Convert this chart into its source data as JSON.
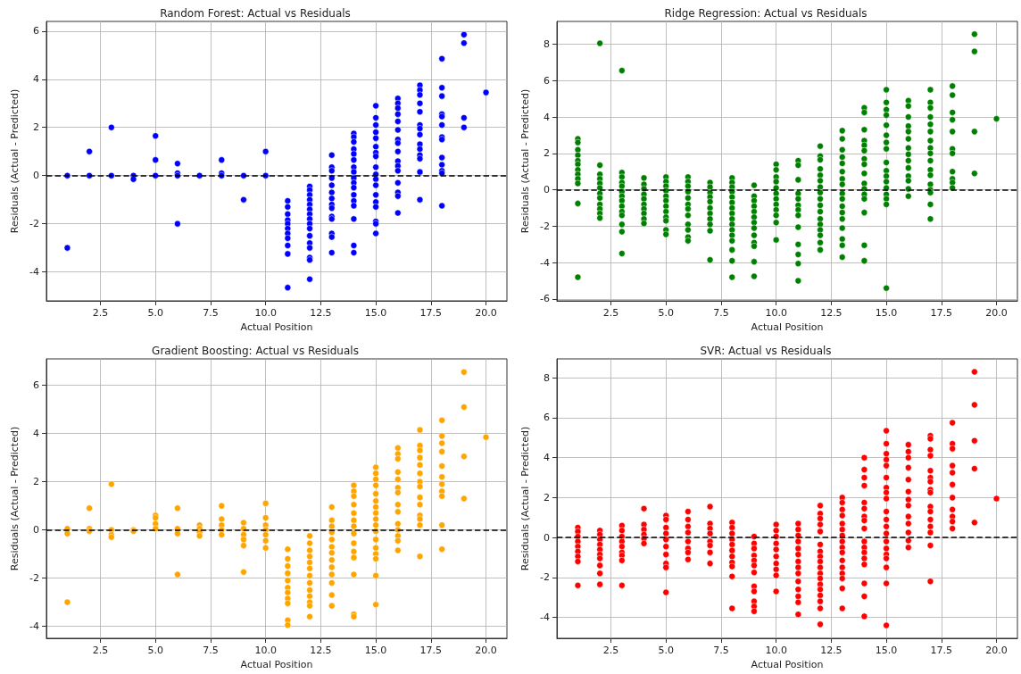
{
  "chart_data": [
    {
      "type": "scatter",
      "title": "Random Forest: Actual vs Residuals",
      "xlabel": "Actual Position",
      "ylabel": "Residuals (Actual - Predicted)",
      "grid": true,
      "marker": "circle",
      "xlim": [
        0.05,
        20.95
      ],
      "ylim": [
        -5.2,
        6.4
      ],
      "xticks": [
        2.5,
        {
          "value": 5,
          "label": "5.0"
        },
        7.5,
        {
          "value": 10,
          "label": "10.0"
        },
        12.5,
        {
          "value": 15,
          "label": "15.0"
        },
        17.5,
        {
          "value": 20,
          "label": "20.0"
        }
      ],
      "yticks": [
        -4,
        -2,
        0,
        2,
        4,
        6
      ],
      "ref_lines": [
        {
          "axis": "y",
          "value": 0,
          "color": "#000000",
          "line_style": "dashed"
        }
      ],
      "series": [
        {
          "color": "#0000ff",
          "x": [
            1,
            1,
            2,
            2,
            3,
            3,
            4,
            4,
            5,
            5,
            5,
            6,
            6,
            6,
            6,
            7,
            8,
            8,
            8,
            9,
            9,
            10,
            10,
            11,
            11,
            11,
            11,
            11,
            11,
            11,
            11,
            11,
            11,
            11,
            12,
            12,
            12,
            12,
            12,
            12,
            12,
            12,
            12,
            12,
            12,
            12,
            12,
            12,
            12,
            12,
            13,
            13,
            13,
            13,
            13,
            13,
            13,
            13,
            13,
            13,
            13,
            13,
            13,
            13,
            14,
            14,
            14,
            14,
            14,
            14,
            14,
            14,
            14,
            14,
            14,
            14,
            14,
            14,
            14,
            14,
            14,
            15,
            15,
            15,
            15,
            15,
            15,
            15,
            15,
            15,
            15,
            15,
            15,
            15,
            15,
            15,
            15,
            15,
            15,
            16,
            16,
            16,
            16,
            16,
            16,
            16,
            16,
            16,
            16,
            16,
            16,
            16,
            16,
            16,
            16,
            17,
            17,
            17,
            17,
            17,
            17,
            17,
            17,
            17,
            17,
            17,
            17,
            17,
            17,
            18,
            18,
            18,
            18,
            18,
            18,
            18,
            18,
            18,
            18,
            18,
            18,
            18,
            19,
            19,
            19,
            19,
            20
          ],
          "values": [
            0,
            -3,
            1,
            0,
            2,
            0,
            0,
            -0.15,
            1.65,
            0.65,
            0,
            0.5,
            0.1,
            0,
            -2,
            0,
            0.65,
            0.1,
            0,
            0,
            -1,
            1,
            0,
            -1.05,
            -1.3,
            -1.6,
            -1.85,
            -2.0,
            -2.2,
            -2.4,
            -2.6,
            -2.9,
            -3.25,
            -4.65,
            -0.45,
            -0.6,
            -0.8,
            -1.0,
            -1.2,
            -1.4,
            -1.6,
            -1.8,
            -2.0,
            -2.2,
            -2.5,
            -2.8,
            -3.0,
            -3.4,
            -3.5,
            -4.3,
            0.85,
            0.35,
            0.2,
            -0.1,
            -0.4,
            -0.7,
            -0.95,
            -1.2,
            -1.35,
            -1.7,
            -1.8,
            -2.4,
            -2.55,
            -3.2,
            1.75,
            1.6,
            1.4,
            1.1,
            0.9,
            0.65,
            0.35,
            0.15,
            -0.1,
            -0.3,
            -0.5,
            -0.8,
            -1.05,
            -1.25,
            -1.8,
            -2.9,
            -3.2,
            2.9,
            2.4,
            2.1,
            1.8,
            1.55,
            1.2,
            0.95,
            0.8,
            0.35,
            0.05,
            -0.15,
            -0.4,
            -0.8,
            -1.1,
            -1.3,
            -1.9,
            -2.0,
            -2.4,
            3.2,
            3.0,
            2.8,
            2.55,
            2.25,
            1.9,
            1.5,
            1.35,
            1.0,
            0.6,
            0.4,
            0.2,
            -0.3,
            -0.7,
            -0.85,
            -1.55,
            3.75,
            3.55,
            3.35,
            3.0,
            2.65,
            2.1,
            1.95,
            1.7,
            1.3,
            1.1,
            0.85,
            0.7,
            0.15,
            -1.0,
            4.85,
            3.65,
            3.3,
            2.55,
            2.45,
            2.1,
            1.6,
            1.5,
            0.75,
            0.45,
            0.2,
            0.1,
            -1.25,
            5.85,
            5.5,
            2.4,
            2.0,
            3.45
          ]
        }
      ]
    },
    {
      "type": "scatter",
      "title": "Ridge Regression: Actual vs Residuals",
      "xlabel": "Actual Position",
      "ylabel": "Residuals (Actual - Predicted)",
      "grid": true,
      "marker": "circle",
      "xlim": [
        0.05,
        20.95
      ],
      "ylim": [
        -6.1,
        9.25
      ],
      "xticks": [
        2.5,
        {
          "value": 5,
          "label": "5.0"
        },
        7.5,
        {
          "value": 10,
          "label": "10.0"
        },
        12.5,
        {
          "value": 15,
          "label": "15.0"
        },
        17.5,
        {
          "value": 20,
          "label": "20.0"
        }
      ],
      "yticks": [
        -6,
        -4,
        -2,
        0,
        2,
        4,
        6,
        8
      ],
      "ref_lines": [
        {
          "axis": "y",
          "value": 0,
          "color": "#000000",
          "line_style": "dashed"
        }
      ],
      "series": [
        {
          "color": "#008000",
          "x": [
            1,
            1,
            1,
            1,
            1,
            1,
            1,
            1,
            1,
            1,
            1,
            1,
            2,
            2,
            2,
            2,
            2,
            2,
            2,
            2,
            2,
            2,
            2,
            2,
            3,
            3,
            3,
            3,
            3,
            3,
            3,
            3,
            3,
            3,
            3,
            3,
            3,
            3,
            4,
            4,
            4,
            4,
            4,
            4,
            4,
            4,
            4,
            4,
            5,
            5,
            5,
            5,
            5,
            5,
            5,
            5,
            5,
            5,
            5,
            5,
            6,
            6,
            6,
            6,
            6,
            6,
            6,
            6,
            6,
            6,
            6,
            6,
            7,
            7,
            7,
            7,
            7,
            7,
            7,
            7,
            7,
            7,
            7,
            8,
            8,
            8,
            8,
            8,
            8,
            8,
            8,
            8,
            8,
            8,
            8,
            8,
            8,
            8,
            8,
            9,
            9,
            9,
            9,
            9,
            9,
            9,
            9,
            9,
            9,
            9,
            9,
            9,
            10,
            10,
            10,
            10,
            10,
            10,
            10,
            10,
            10,
            10,
            10,
            10,
            11,
            11,
            11,
            11,
            11,
            11,
            11,
            11,
            11,
            11,
            11,
            11,
            11,
            12,
            12,
            12,
            12,
            12,
            12,
            12,
            12,
            12,
            12,
            12,
            12,
            12,
            12,
            12,
            12,
            12,
            13,
            13,
            13,
            13,
            13,
            13,
            13,
            13,
            13,
            13,
            13,
            13,
            13,
            13,
            13,
            13,
            13,
            14,
            14,
            14,
            14,
            14,
            14,
            14,
            14,
            14,
            14,
            14,
            14,
            14,
            14,
            14,
            14,
            15,
            15,
            15,
            15,
            15,
            15,
            15,
            15,
            15,
            15,
            15,
            15,
            15,
            15,
            15,
            15,
            15,
            16,
            16,
            16,
            16,
            16,
            16,
            16,
            16,
            16,
            16,
            16,
            16,
            16,
            16,
            17,
            17,
            17,
            17,
            17,
            17,
            17,
            17,
            17,
            17,
            17,
            17,
            17,
            17,
            17,
            17,
            17,
            18,
            18,
            18,
            18,
            18,
            18,
            18,
            18,
            18,
            18,
            18,
            19,
            19,
            19,
            19,
            20
          ],
          "values": [
            2.8,
            2.6,
            2.2,
            1.9,
            1.6,
            1.4,
            1.1,
            0.85,
            0.6,
            0.35,
            -0.75,
            -4.8,
            8.05,
            1.35,
            0.85,
            0.6,
            0.35,
            0.1,
            -0.2,
            -0.45,
            -0.8,
            -1.05,
            -1.3,
            -1.55,
            6.55,
            0.95,
            0.7,
            0.4,
            0.2,
            -0.1,
            -0.35,
            -0.6,
            -0.9,
            -1.2,
            -1.4,
            -1.9,
            -2.3,
            -3.5,
            0.65,
            0.3,
            0.05,
            -0.25,
            -0.5,
            -0.8,
            -1.05,
            -1.3,
            -1.6,
            -1.85,
            0.7,
            0.45,
            0.2,
            -0.05,
            -0.35,
            -0.6,
            -0.9,
            -1.2,
            -1.5,
            -1.7,
            -2.2,
            -2.45,
            0.7,
            0.45,
            0.2,
            -0.1,
            -0.45,
            -0.8,
            -1.05,
            -1.4,
            -1.9,
            -2.2,
            -2.6,
            -2.8,
            0.4,
            0.15,
            -0.15,
            -0.4,
            -0.65,
            -1.0,
            -1.3,
            -1.6,
            -1.9,
            -2.25,
            -3.85,
            0.65,
            0.4,
            0.15,
            -0.1,
            -0.4,
            -0.7,
            -1.0,
            -1.3,
            -1.6,
            -1.9,
            -2.2,
            -2.5,
            -2.8,
            -3.3,
            -3.9,
            -4.8,
            0.25,
            -0.35,
            -0.6,
            -0.9,
            -1.2,
            -1.5,
            -1.8,
            -2.1,
            -2.5,
            -2.9,
            -3.1,
            -3.95,
            -4.75,
            1.4,
            1.1,
            0.7,
            0.45,
            0.1,
            -0.2,
            -0.5,
            -0.8,
            -1.1,
            -1.4,
            -1.8,
            -2.75,
            1.6,
            1.35,
            0.55,
            -0.2,
            -0.5,
            -0.85,
            -1.1,
            -1.4,
            -2.05,
            -3.0,
            -3.55,
            -4.05,
            -5.0,
            2.4,
            1.85,
            1.65,
            1.15,
            0.8,
            0.5,
            0.15,
            -0.15,
            -0.5,
            -0.85,
            -1.2,
            -1.6,
            -1.9,
            -2.2,
            -2.5,
            -2.9,
            -3.3,
            3.25,
            2.8,
            2.2,
            1.8,
            1.45,
            1.0,
            0.6,
            0.3,
            -0.2,
            -0.5,
            -0.9,
            -1.25,
            -1.6,
            -2.1,
            -2.7,
            -3.05,
            -3.7,
            4.5,
            4.25,
            3.3,
            2.7,
            2.45,
            2.15,
            1.7,
            1.4,
            0.9,
            0.35,
            0.05,
            -0.25,
            -0.5,
            -1.25,
            -3.05,
            -3.9,
            5.5,
            4.8,
            4.4,
            4.1,
            3.55,
            3.0,
            2.6,
            2.25,
            1.5,
            1.05,
            0.75,
            0.45,
            0.1,
            -0.25,
            -0.5,
            -0.8,
            -5.4,
            4.9,
            4.6,
            4.0,
            3.5,
            3.2,
            2.8,
            2.3,
            1.95,
            1.6,
            1.2,
            0.75,
            0.5,
            0.05,
            -0.35,
            5.5,
            4.8,
            4.5,
            4.0,
            3.6,
            3.2,
            2.7,
            2.3,
            2.0,
            1.6,
            1.1,
            0.8,
            0.3,
            0.0,
            -0.15,
            -0.8,
            -1.6,
            5.7,
            5.2,
            4.25,
            3.85,
            3.2,
            2.25,
            2.0,
            1.0,
            0.6,
            0.4,
            0.1,
            8.55,
            7.6,
            3.2,
            0.9,
            3.9
          ]
        }
      ]
    },
    {
      "type": "scatter",
      "title": "Gradient Boosting: Actual vs Residuals",
      "xlabel": "Actual Position",
      "ylabel": "Residuals (Actual - Predicted)",
      "grid": true,
      "marker": "circle",
      "xlim": [
        0.05,
        20.95
      ],
      "ylim": [
        -4.5,
        7.1
      ],
      "xticks": [
        2.5,
        {
          "value": 5,
          "label": "5.0"
        },
        7.5,
        {
          "value": 10,
          "label": "10.0"
        },
        12.5,
        {
          "value": 15,
          "label": "15.0"
        },
        17.5,
        {
          "value": 20,
          "label": "20.0"
        }
      ],
      "yticks": [
        -4,
        -2,
        0,
        2,
        4,
        6
      ],
      "ref_lines": [
        {
          "axis": "y",
          "value": 0,
          "color": "#000000",
          "line_style": "dashed"
        }
      ],
      "series": [
        {
          "color": "#ffa500",
          "x": [
            1,
            1,
            1,
            2,
            2,
            2,
            3,
            3,
            3,
            3,
            4,
            4,
            5,
            5,
            5,
            5,
            6,
            6,
            6,
            6,
            7,
            7,
            7,
            7,
            8,
            8,
            8,
            8,
            8,
            9,
            9,
            9,
            9,
            9,
            9,
            10,
            10,
            10,
            10,
            10,
            10,
            10,
            11,
            11,
            11,
            11,
            11,
            11,
            11,
            11,
            11,
            11,
            11,
            12,
            12,
            12,
            12,
            12,
            12,
            12,
            12,
            12,
            12,
            12,
            12,
            12,
            13,
            13,
            13,
            13,
            13,
            13,
            13,
            13,
            13,
            13,
            13,
            13,
            13,
            14,
            14,
            14,
            14,
            14,
            14,
            14,
            14,
            14,
            14,
            14,
            14,
            14,
            14,
            15,
            15,
            15,
            15,
            15,
            15,
            15,
            15,
            15,
            15,
            15,
            15,
            15,
            15,
            15,
            15,
            15,
            16,
            16,
            16,
            16,
            16,
            16,
            16,
            16,
            16,
            16,
            16,
            16,
            16,
            16,
            17,
            17,
            17,
            17,
            17,
            17,
            17,
            17,
            17,
            17,
            17,
            17,
            17,
            17,
            18,
            18,
            18,
            18,
            18,
            18,
            18,
            18,
            18,
            18,
            18,
            19,
            19,
            19,
            19,
            20
          ],
          "values": [
            0.05,
            -0.15,
            -3.0,
            0.9,
            0.05,
            -0.05,
            1.9,
            0,
            -0.2,
            -0.3,
            0,
            -0.05,
            0.6,
            0.5,
            0.25,
            0.05,
            0.9,
            0.05,
            -0.15,
            -1.85,
            0.2,
            0.05,
            -0.1,
            -0.25,
            1.0,
            0.45,
            0.2,
            0.0,
            -0.2,
            0.3,
            0.05,
            -0.2,
            -0.4,
            -0.65,
            -1.75,
            1.1,
            0.5,
            0.2,
            0,
            -0.2,
            -0.45,
            -0.75,
            -0.8,
            -1.2,
            -1.5,
            -1.8,
            -2.1,
            -2.4,
            -2.6,
            -2.85,
            -3.05,
            -3.75,
            -3.95,
            -0.25,
            -0.55,
            -0.85,
            -1.1,
            -1.35,
            -1.6,
            -1.9,
            -2.2,
            -2.5,
            -2.75,
            -3.0,
            -3.15,
            -3.6,
            0.95,
            0.4,
            0.15,
            -0.1,
            -0.4,
            -0.7,
            -0.95,
            -1.25,
            -1.55,
            -1.85,
            -2.2,
            -2.7,
            -3.15,
            1.85,
            1.6,
            1.4,
            1.05,
            0.7,
            0.4,
            0.15,
            -0.15,
            -0.55,
            -0.9,
            -1.15,
            -1.85,
            -3.5,
            -3.6,
            2.6,
            2.35,
            2.1,
            1.85,
            1.5,
            1.2,
            0.95,
            0.7,
            0.45,
            0.2,
            -0.05,
            -0.4,
            -0.75,
            -1.0,
            -1.2,
            -1.9,
            -3.1,
            3.4,
            3.15,
            2.95,
            2.4,
            2.1,
            1.75,
            1.55,
            1.05,
            0.75,
            0.25,
            0.0,
            -0.25,
            -0.45,
            -0.85,
            4.15,
            3.5,
            3.3,
            3.0,
            2.7,
            2.35,
            2.0,
            1.8,
            1.35,
            1.05,
            0.6,
            0.45,
            0.2,
            -1.1,
            4.55,
            3.9,
            3.6,
            3.25,
            2.65,
            2.2,
            1.9,
            1.6,
            1.4,
            0.2,
            -0.8,
            6.55,
            5.1,
            3.05,
            1.3,
            3.85
          ]
        }
      ]
    },
    {
      "type": "scatter",
      "title": "SVR: Actual vs Residuals",
      "xlabel": "Actual Position",
      "ylabel": "Residuals (Actual - Predicted)",
      "grid": true,
      "marker": "circle",
      "xlim": [
        0.05,
        20.95
      ],
      "ylim": [
        -5.05,
        8.95
      ],
      "xticks": [
        2.5,
        {
          "value": 5,
          "label": "5.0"
        },
        7.5,
        {
          "value": 10,
          "label": "10.0"
        },
        12.5,
        {
          "value": 15,
          "label": "15.0"
        },
        17.5,
        {
          "value": 20,
          "label": "20.0"
        }
      ],
      "yticks": [
        -4,
        -2,
        0,
        2,
        4,
        6,
        8
      ],
      "ref_lines": [
        {
          "axis": "y",
          "value": 0,
          "color": "#000000",
          "line_style": "dashed"
        }
      ],
      "series": [
        {
          "color": "#ff0000",
          "x": [
            1,
            1,
            1,
            1,
            1,
            1,
            1,
            1,
            1,
            2,
            2,
            2,
            2,
            2,
            2,
            2,
            2,
            2,
            2,
            3,
            3,
            3,
            3,
            3,
            3,
            3,
            3,
            3,
            4,
            4,
            4,
            4,
            4,
            4,
            5,
            5,
            5,
            5,
            5,
            5,
            5,
            5,
            5,
            5,
            6,
            6,
            6,
            6,
            6,
            6,
            6,
            6,
            7,
            7,
            7,
            7,
            7,
            7,
            7,
            7,
            8,
            8,
            8,
            8,
            8,
            8,
            8,
            8,
            8,
            8,
            8,
            9,
            9,
            9,
            9,
            9,
            9,
            9,
            9,
            9,
            9,
            9,
            9,
            10,
            10,
            10,
            10,
            10,
            10,
            10,
            10,
            10,
            10,
            11,
            11,
            11,
            11,
            11,
            11,
            11,
            11,
            11,
            11,
            11,
            11,
            11,
            11,
            12,
            12,
            12,
            12,
            12,
            12,
            12,
            12,
            12,
            12,
            12,
            12,
            12,
            12,
            12,
            12,
            12,
            12,
            13,
            13,
            13,
            13,
            13,
            13,
            13,
            13,
            13,
            13,
            13,
            13,
            13,
            13,
            13,
            13,
            14,
            14,
            14,
            14,
            14,
            14,
            14,
            14,
            14,
            14,
            14,
            14,
            14,
            14,
            14,
            14,
            14,
            15,
            15,
            15,
            15,
            15,
            15,
            15,
            15,
            15,
            15,
            15,
            15,
            15,
            15,
            15,
            15,
            15,
            15,
            15,
            15,
            16,
            16,
            16,
            16,
            16,
            16,
            16,
            16,
            16,
            16,
            16,
            16,
            16,
            17,
            17,
            17,
            17,
            17,
            17,
            17,
            17,
            17,
            17,
            17,
            17,
            17,
            17,
            17,
            17,
            18,
            18,
            18,
            18,
            18,
            18,
            18,
            18,
            18,
            18,
            18,
            19,
            19,
            19,
            19,
            19,
            20
          ],
          "values": [
            0.5,
            0.3,
            0.05,
            -0.2,
            -0.45,
            -0.7,
            -0.95,
            -1.2,
            -2.4,
            0.35,
            0.15,
            -0.1,
            -0.35,
            -0.6,
            -0.85,
            -1.05,
            -1.4,
            -1.8,
            -2.35,
            0.6,
            0.35,
            0.05,
            -0.2,
            -0.45,
            -0.75,
            -0.9,
            -1.15,
            -2.4,
            1.45,
            0.65,
            0.4,
            0.15,
            -0.05,
            -0.3,
            1.1,
            0.9,
            0.5,
            0.2,
            -0.1,
            -0.45,
            -0.85,
            -1.3,
            -1.5,
            -2.75,
            1.3,
            0.9,
            0.55,
            0.25,
            -0.2,
            -0.55,
            -0.75,
            -1.1,
            1.55,
            0.7,
            0.45,
            0.2,
            -0.2,
            -0.4,
            -0.75,
            -1.3,
            0.75,
            0.5,
            0.2,
            -0.1,
            -0.35,
            -0.65,
            -0.95,
            -1.25,
            -1.45,
            -1.95,
            -3.55,
            0.05,
            -0.3,
            -0.55,
            -0.9,
            -1.15,
            -1.4,
            -1.75,
            -2.45,
            -2.7,
            -3.2,
            -3.45,
            -3.7,
            0.65,
            0.35,
            0.05,
            -0.3,
            -0.6,
            -0.95,
            -1.3,
            -1.6,
            -1.9,
            -2.7,
            0.7,
            0.4,
            0.1,
            -0.2,
            -0.55,
            -0.85,
            -1.2,
            -1.5,
            -1.8,
            -2.2,
            -2.6,
            -2.95,
            -3.25,
            -3.85,
            1.6,
            1.2,
            0.95,
            0.65,
            0.3,
            -0.35,
            -0.7,
            -0.95,
            -1.2,
            -1.5,
            -1.8,
            -2.05,
            -2.35,
            -2.6,
            -2.9,
            -3.2,
            -3.55,
            -4.35,
            2.0,
            1.75,
            1.4,
            1.1,
            0.7,
            0.4,
            0.1,
            -0.2,
            -0.5,
            -0.75,
            -1.15,
            -1.5,
            -1.8,
            -2.05,
            -2.55,
            -3.55,
            4.0,
            3.4,
            3.0,
            2.6,
            1.75,
            1.45,
            1.05,
            0.85,
            0.45,
            -0.2,
            -0.5,
            -0.75,
            -1.05,
            -1.35,
            -2.3,
            -2.95,
            -3.95,
            5.35,
            4.7,
            4.2,
            3.9,
            3.6,
            3.0,
            2.5,
            2.25,
            1.95,
            1.3,
            0.9,
            0.55,
            0.2,
            -0.2,
            -0.55,
            -0.85,
            -1.05,
            -1.5,
            -2.3,
            -4.4,
            4.65,
            4.3,
            4.0,
            3.5,
            2.9,
            2.3,
            1.9,
            1.6,
            1.05,
            0.7,
            0.25,
            -0.15,
            -0.5,
            5.1,
            4.95,
            4.4,
            4.1,
            3.35,
            3.0,
            2.8,
            2.4,
            2.25,
            1.55,
            1.3,
            0.9,
            0.55,
            0.25,
            -0.4,
            -2.2,
            5.75,
            4.7,
            4.45,
            3.6,
            3.25,
            2.65,
            2.0,
            1.4,
            1.05,
            0.8,
            0.45,
            8.3,
            6.65,
            4.85,
            3.45,
            0.75,
            1.95
          ]
        }
      ]
    }
  ]
}
